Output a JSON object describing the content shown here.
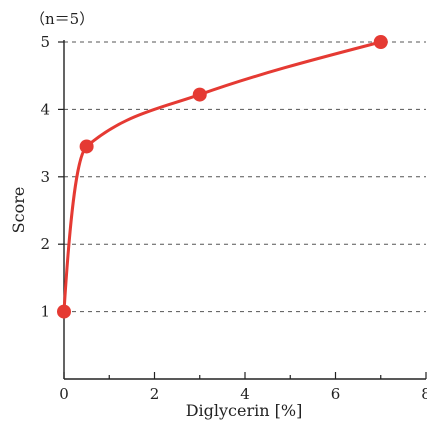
{
  "chart_data": {
    "type": "line",
    "annotation": "（n＝5）",
    "xlabel": "Diglycerin [%]",
    "ylabel": "Score",
    "x": [
      0,
      0.5,
      3,
      7
    ],
    "series": [
      {
        "values": [
          1,
          3.45,
          4.22,
          5.0
        ]
      }
    ],
    "xlim": [
      0,
      8
    ],
    "ylim": [
      0,
      5
    ],
    "xticks": [
      0,
      2,
      4,
      6,
      8
    ],
    "yticks": [
      1,
      2,
      3,
      4,
      5
    ],
    "grid": "horizontal-dashed",
    "colors": {
      "series": "#e53a33",
      "axis": "#222222",
      "grid": "#555555"
    }
  }
}
